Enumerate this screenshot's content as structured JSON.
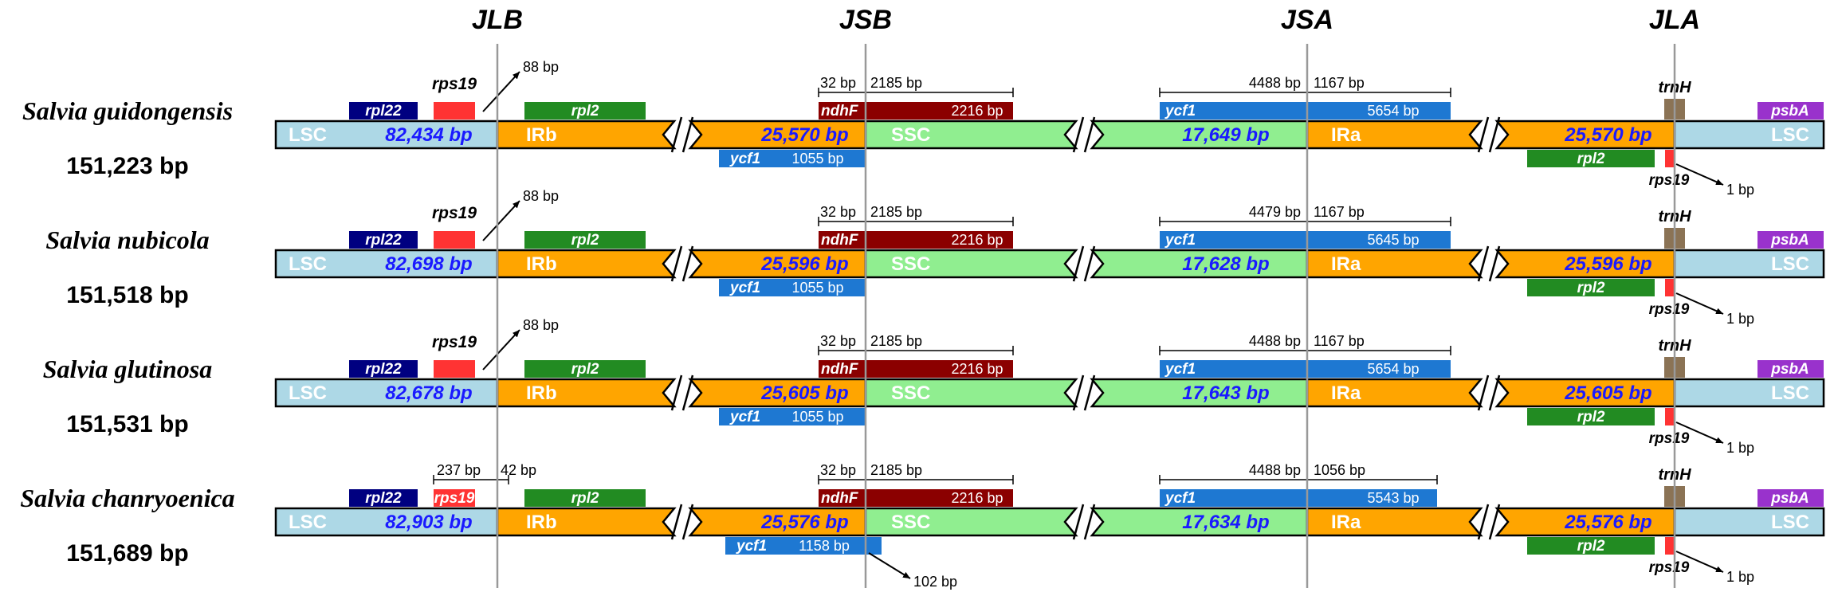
{
  "junctions": [
    "JLB",
    "JSB",
    "JSA",
    "JLA"
  ],
  "region_labels": {
    "lsc": "LSC",
    "irb": "IRb",
    "ssc": "SSC",
    "ira": "IRa"
  },
  "colors": {
    "lsc": "#add8e6",
    "ir": "#ffa500",
    "ssc": "#90ee90",
    "rpl22": "#000080",
    "rps19": "#ff3333",
    "rpl2": "#228b22",
    "ndhF": "#8b0000",
    "ycf1": "#1e78d2",
    "trnH": "#8b7355",
    "psbA": "#9932cc",
    "size_text": "#1a1aff",
    "junction_line": "#999999"
  },
  "genomes": [
    {
      "name": "Salvia guidongensis",
      "total": "151,223 bp",
      "lsc": "82,434 bp",
      "irb": "25,570 bp",
      "ssc": "17,649 bp",
      "ira": "25,570 bp",
      "genes": {
        "rpl22": "rpl22",
        "rps19": "rps19",
        "rpl2_b": "rpl2",
        "ndhF": "ndhF",
        "ycf1_a": "ycf1",
        "ycf1_b": "ycf1",
        "rpl2_a": "rpl2",
        "rps19_a": "rps19",
        "trnH": "trnH",
        "psbA": "psbA"
      },
      "ann": {
        "jlb_arrow": "88 bp",
        "ndhF_len": "2216 bp",
        "jsb_left": "32 bp",
        "jsb_right": "2185 bp",
        "ycf1b_len": "1055 bp",
        "ycf1a_len": "5654 bp",
        "jsa_left": "4488 bp",
        "jsa_right": "1167 bp",
        "jla_arrow": "1 bp"
      }
    },
    {
      "name": "Salvia nubicola",
      "total": "151,518 bp",
      "lsc": "82,698 bp",
      "irb": "25,596 bp",
      "ssc": "17,628 bp",
      "ira": "25,596 bp",
      "genes": {
        "rpl22": "rpl22",
        "rps19": "rps19",
        "rpl2_b": "rpl2",
        "ndhF": "ndhF",
        "ycf1_a": "ycf1",
        "ycf1_b": "ycf1",
        "rpl2_a": "rpl2",
        "rps19_a": "rps19",
        "trnH": "trnH",
        "psbA": "psbA"
      },
      "ann": {
        "jlb_arrow": "88 bp",
        "ndhF_len": "2216 bp",
        "jsb_left": "32 bp",
        "jsb_right": "2185 bp",
        "ycf1b_len": "1055 bp",
        "ycf1a_len": "5645 bp",
        "jsa_left": "4479 bp",
        "jsa_right": "1167 bp",
        "jla_arrow": "1 bp"
      }
    },
    {
      "name": "Salvia glutinosa",
      "total": "151,531 bp",
      "lsc": "82,678 bp",
      "irb": "25,605 bp",
      "ssc": "17,643 bp",
      "ira": "25,605 bp",
      "genes": {
        "rpl22": "rpl22",
        "rps19": "rps19",
        "rpl2_b": "rpl2",
        "ndhF": "ndhF",
        "ycf1_a": "ycf1",
        "ycf1_b": "ycf1",
        "rpl2_a": "rpl2",
        "rps19_a": "rps19",
        "trnH": "trnH",
        "psbA": "psbA"
      },
      "ann": {
        "jlb_arrow": "88 bp",
        "ndhF_len": "2216 bp",
        "jsb_left": "32 bp",
        "jsb_right": "2185 bp",
        "ycf1b_len": "1055 bp",
        "ycf1a_len": "5654 bp",
        "jsa_left": "4488 bp",
        "jsa_right": "1167 bp",
        "jla_arrow": "1 bp"
      }
    },
    {
      "name": "Salvia chanryoenica",
      "total": "151,689 bp",
      "lsc": "82,903 bp",
      "irb": "25,576 bp",
      "ssc": "17,634 bp",
      "ira": "25,576 bp",
      "genes": {
        "rpl22": "rpl22",
        "rps19": "rps19",
        "rpl2_b": "rpl2",
        "ndhF": "ndhF",
        "ycf1_a": "ycf1",
        "ycf1_b": "ycf1",
        "rpl2_a": "rpl2",
        "rps19_a": "rps19",
        "trnH": "trnH",
        "psbA": "psbA"
      },
      "ann": {
        "jlb_left": "237 bp",
        "jlb_right": "42 bp",
        "ndhF_len": "2216 bp",
        "jsb_left": "32 bp",
        "jsb_right": "2185 bp",
        "ycf1b_len": "1158 bp",
        "jsb_arrow": "102 bp",
        "ycf1a_len": "5543 bp",
        "jsa_left": "4488 bp",
        "jsa_right": "1056 bp",
        "jla_arrow": "1 bp"
      }
    }
  ]
}
